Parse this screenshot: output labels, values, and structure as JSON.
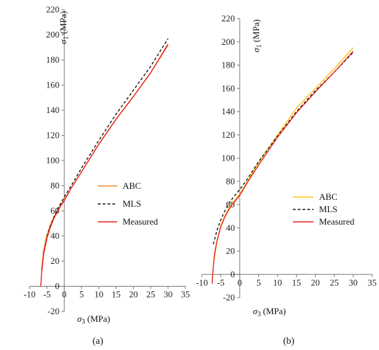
{
  "chart_data": [
    {
      "type": "line",
      "panel_label": "(a)",
      "xlabel_symbol": "σ",
      "xlabel_sub": "3",
      "xlabel_unit": " (MPa)",
      "ylabel_symbol": "σ",
      "ylabel_sub": "1",
      "ylabel_unit": " (MPa)",
      "xlim": [
        -10,
        35
      ],
      "ylim": [
        -20,
        220
      ],
      "xticks": [
        -10,
        -5,
        0,
        5,
        10,
        15,
        20,
        25,
        30,
        35
      ],
      "yticks": [
        -20,
        0,
        20,
        40,
        60,
        80,
        100,
        120,
        140,
        160,
        180,
        200,
        220
      ],
      "grid": false,
      "legend_position": "middle-right",
      "series": [
        {
          "name": "ABC",
          "color": "#f28c28",
          "dash": "solid",
          "x": [
            -6.5,
            -6,
            -5,
            -4,
            -3,
            -2,
            -1,
            0,
            2,
            5,
            10,
            15,
            20,
            25,
            30
          ],
          "y": [
            14,
            28,
            41,
            49,
            55,
            60,
            65,
            69,
            78,
            91,
            113,
            133,
            151,
            170,
            193
          ]
        },
        {
          "name": "MLS",
          "color": "#111111",
          "dash": "dashed",
          "x": [
            -6.5,
            -6,
            -5,
            -4,
            -3,
            -2,
            -1,
            0,
            2,
            5,
            10,
            15,
            20,
            25,
            30
          ],
          "y": [
            13,
            25,
            39,
            48,
            55,
            61,
            66,
            71,
            80,
            94,
            116,
            137,
            156,
            175,
            197
          ]
        },
        {
          "name": "Measured",
          "color": "#e8211c",
          "dash": "solid",
          "x": [
            -6.8,
            -6.6,
            -6.3,
            -6,
            -5,
            -4,
            -3,
            -2,
            -1,
            0,
            2,
            5,
            10,
            15,
            20,
            25,
            30
          ],
          "y": [
            0,
            8,
            17,
            25,
            38,
            47,
            54,
            59,
            64,
            68,
            78,
            91,
            113,
            133,
            151,
            170,
            192
          ]
        }
      ]
    },
    {
      "type": "line",
      "panel_label": "(b)",
      "xlabel_symbol": "σ",
      "xlabel_sub": "3",
      "xlabel_unit": " (MPa)",
      "ylabel_symbol": "σ",
      "ylabel_sub": "1",
      "ylabel_unit": " (MPa)",
      "xlim": [
        -10,
        35
      ],
      "ylim": [
        -20,
        220
      ],
      "xticks": [
        -10,
        -5,
        0,
        5,
        10,
        15,
        20,
        25,
        30,
        35
      ],
      "yticks": [
        -20,
        0,
        20,
        40,
        60,
        80,
        100,
        120,
        140,
        160,
        180,
        200,
        220
      ],
      "grid": false,
      "legend_position": "middle-right",
      "series": [
        {
          "name": "ABC",
          "color": "#f5c518",
          "dash": "solid",
          "x": [
            -7,
            -6,
            -5,
            -4,
            -3,
            -2,
            -1,
            0,
            2,
            5,
            10,
            15,
            20,
            25,
            30
          ],
          "y": [
            8,
            29,
            42,
            50,
            56,
            61,
            65,
            69,
            80,
            96,
            120,
            143,
            160,
            177,
            195
          ]
        },
        {
          "name": "MLS",
          "color": "#111111",
          "dash": "dashed",
          "x": [
            -7,
            -6,
            -5,
            -4,
            -3,
            -2,
            -1,
            0,
            2,
            5,
            10,
            15,
            20,
            25,
            30
          ],
          "y": [
            26,
            38,
            47,
            54,
            60,
            65,
            69,
            73,
            82,
            97,
            119,
            140,
            158,
            174,
            191
          ]
        },
        {
          "name": "Measured",
          "color": "#e8211c",
          "dash": "solid",
          "x": [
            -7.3,
            -7,
            -6.6,
            -6,
            -5,
            -4,
            -3,
            -2,
            -1,
            0,
            2,
            5,
            10,
            15,
            20,
            25,
            30
          ],
          "y": [
            -8,
            7,
            19,
            29,
            41,
            49,
            55,
            60,
            64,
            68,
            79,
            94,
            118,
            139,
            157,
            174,
            192
          ]
        }
      ]
    }
  ]
}
